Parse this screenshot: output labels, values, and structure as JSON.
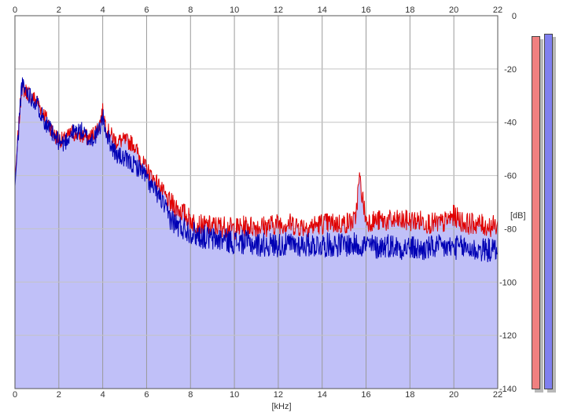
{
  "chart_data": {
    "type": "area",
    "xlabel": "[kHz]",
    "ylabel": "[dB]",
    "xlim": [
      0,
      22
    ],
    "ylim": [
      -140,
      0
    ],
    "x_ticks": [
      "0",
      "2",
      "4",
      "6",
      "8",
      "10",
      "12",
      "14",
      "16",
      "18",
      "20",
      "22"
    ],
    "y_ticks": [
      "0",
      "-20",
      "-40",
      "-60",
      "-80",
      "-100",
      "-120",
      "-140"
    ],
    "grid": true,
    "series": [
      {
        "color": "#e00000",
        "x": [
          0,
          0.3,
          0.6,
          1.0,
          1.4,
          1.8,
          2.2,
          2.6,
          3.0,
          3.4,
          3.8,
          4.0,
          4.2,
          4.6,
          5.0,
          5.4,
          5.8,
          6.2,
          6.6,
          7.0,
          7.4,
          7.8,
          8.2,
          8.6,
          9.0,
          9.5,
          10.0,
          10.5,
          11.0,
          11.5,
          12.0,
          12.5,
          13.0,
          13.5,
          14.0,
          14.5,
          15.0,
          15.5,
          15.7,
          16.0,
          16.5,
          17.0,
          17.5,
          18.0,
          18.5,
          19.0,
          19.5,
          20.0,
          20.5,
          21.0,
          21.5,
          22.0
        ],
        "values": [
          -62,
          -27,
          -29,
          -32,
          -38,
          -45,
          -47,
          -44,
          -45,
          -46,
          -42,
          -36,
          -43,
          -47,
          -47,
          -48,
          -55,
          -60,
          -64,
          -70,
          -72,
          -75,
          -78,
          -79,
          -79,
          -79,
          -80,
          -79,
          -79,
          -79,
          -78,
          -78,
          -79,
          -79,
          -78,
          -78,
          -78,
          -77,
          -61,
          -77,
          -77,
          -77,
          -77,
          -77,
          -77,
          -78,
          -78,
          -75,
          -78,
          -78,
          -79,
          -79
        ]
      },
      {
        "color": "#0000b4",
        "x": [
          0,
          0.3,
          0.6,
          1.0,
          1.4,
          1.8,
          2.2,
          2.6,
          3.0,
          3.4,
          3.8,
          4.0,
          4.2,
          4.6,
          5.0,
          5.4,
          5.8,
          6.2,
          6.6,
          7.0,
          7.4,
          7.8,
          8.2,
          8.6,
          9.0,
          9.5,
          10.0,
          10.5,
          11.0,
          11.5,
          12.0,
          12.5,
          13.0,
          13.5,
          14.0,
          14.5,
          15.0,
          15.5,
          15.7,
          16.0,
          16.5,
          17.0,
          17.5,
          18.0,
          18.5,
          19.0,
          19.5,
          20.0,
          20.5,
          21.0,
          21.5,
          22.0
        ],
        "values": [
          -64,
          -26,
          -29,
          -33,
          -40,
          -46,
          -48,
          -44,
          -43,
          -47,
          -44,
          -38,
          -45,
          -52,
          -54,
          -56,
          -58,
          -64,
          -68,
          -75,
          -79,
          -80,
          -82,
          -83,
          -84,
          -84,
          -85,
          -85,
          -86,
          -86,
          -86,
          -86,
          -86,
          -86,
          -86,
          -86,
          -86,
          -86,
          -86,
          -86,
          -87,
          -86,
          -87,
          -87,
          -88,
          -87,
          -87,
          -87,
          -87,
          -88,
          -88,
          -88
        ]
      }
    ],
    "fill_color": "#c0c0f8",
    "meters": [
      {
        "color": "#f08080",
        "level": 0.945
      },
      {
        "color": "#8080f0",
        "level": 0.95
      }
    ]
  }
}
